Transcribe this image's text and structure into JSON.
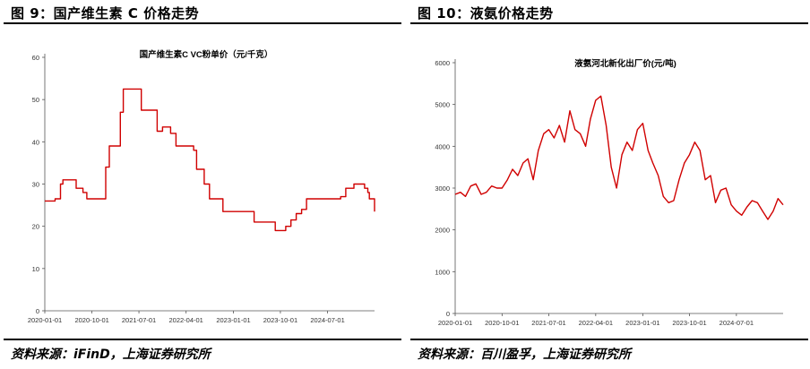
{
  "figures": [
    {
      "fig_title": "图 9：国产维生素 C 价格走势",
      "source": "资料来源：iFinD，上海证券研究所"
    },
    {
      "fig_title": "图 10：液氨价格走势",
      "source": "资料来源：百川盈孚，上海证券研究所"
    }
  ],
  "chart_data": [
    {
      "type": "line",
      "title": "国产维生素C VC粉单价（元/千克）",
      "x_type": "date",
      "xlim": [
        "2020-01-01",
        "2025-03-31"
      ],
      "ylim": [
        0,
        60
      ],
      "y_ticks": [
        "0",
        "10",
        "20",
        "30",
        "40",
        "50",
        "60"
      ],
      "x_ticks": [
        {
          "date": "2020-01-01",
          "label": "2020-01-01"
        },
        {
          "date": "2020-10-01",
          "label": "2020-10-01"
        },
        {
          "date": "2021-07-01",
          "label": "2021-07-01"
        },
        {
          "date": "2022-04-01",
          "label": "2022-04-01"
        },
        {
          "date": "2023-01-01",
          "label": "2023-01-01"
        },
        {
          "date": "2023-10-01",
          "label": "2023-10-01"
        },
        {
          "date": "2024-07-01",
          "label": "2024-07-01"
        }
      ],
      "grid": false,
      "color": "#d00000",
      "step": true,
      "points": [
        [
          "2020-01-01",
          26
        ],
        [
          "2020-03-01",
          26.5
        ],
        [
          "2020-04-01",
          30
        ],
        [
          "2020-04-15",
          31
        ],
        [
          "2020-07-01",
          29
        ],
        [
          "2020-08-10",
          28
        ],
        [
          "2020-09-01",
          26.5
        ],
        [
          "2020-12-20",
          34
        ],
        [
          "2021-01-10",
          39
        ],
        [
          "2021-03-15",
          47
        ],
        [
          "2021-04-01",
          52.5
        ],
        [
          "2021-07-15",
          47.5
        ],
        [
          "2021-10-15",
          42.5
        ],
        [
          "2021-11-15",
          43.5
        ],
        [
          "2022-01-01",
          42
        ],
        [
          "2022-02-01",
          39
        ],
        [
          "2022-05-15",
          38
        ],
        [
          "2022-06-01",
          33.5
        ],
        [
          "2022-07-15",
          30
        ],
        [
          "2022-08-15",
          26.5
        ],
        [
          "2022-11-01",
          23.5
        ],
        [
          "2023-05-01",
          21
        ],
        [
          "2023-08-01",
          21
        ],
        [
          "2023-09-01",
          19
        ],
        [
          "2023-11-01",
          20
        ],
        [
          "2023-12-01",
          21.5
        ],
        [
          "2024-01-01",
          23
        ],
        [
          "2024-02-01",
          24
        ],
        [
          "2024-03-01",
          26.5
        ],
        [
          "2024-09-15",
          27
        ],
        [
          "2024-10-15",
          29
        ],
        [
          "2024-12-01",
          30
        ],
        [
          "2025-02-01",
          29
        ],
        [
          "2025-02-20",
          28
        ],
        [
          "2025-03-01",
          26.5
        ],
        [
          "2025-03-31",
          23.5
        ]
      ]
    },
    {
      "type": "line",
      "title": "液氨河北新化出厂价(元/吨)",
      "x_type": "date",
      "xlim": [
        "2020-01-01",
        "2025-03-31"
      ],
      "ylim": [
        0,
        6000
      ],
      "y_ticks": [
        "0",
        "1000",
        "2000",
        "3000",
        "4000",
        "5000",
        "6000"
      ],
      "x_ticks": [
        {
          "date": "2020-01-01",
          "label": "2020-01-01"
        },
        {
          "date": "2020-10-01",
          "label": "2020-10-01"
        },
        {
          "date": "2021-07-01",
          "label": "2021-07-01"
        },
        {
          "date": "2022-04-01",
          "label": "2022-04-01"
        },
        {
          "date": "2023-01-01",
          "label": "2023-01-01"
        },
        {
          "date": "2023-10-01",
          "label": "2023-10-01"
        },
        {
          "date": "2024-07-01",
          "label": "2024-07-01"
        }
      ],
      "grid": false,
      "color": "#d00000",
      "step": false,
      "points": [
        [
          "2020-01-01",
          2850
        ],
        [
          "2020-02-01",
          2900
        ],
        [
          "2020-03-01",
          2800
        ],
        [
          "2020-04-01",
          3050
        ],
        [
          "2020-05-01",
          3100
        ],
        [
          "2020-06-01",
          2850
        ],
        [
          "2020-07-01",
          2900
        ],
        [
          "2020-08-01",
          3050
        ],
        [
          "2020-09-01",
          3000
        ],
        [
          "2020-10-01",
          3000
        ],
        [
          "2020-11-01",
          3200
        ],
        [
          "2020-12-01",
          3450
        ],
        [
          "2021-01-01",
          3300
        ],
        [
          "2021-02-01",
          3600
        ],
        [
          "2021-03-01",
          3700
        ],
        [
          "2021-04-01",
          3200
        ],
        [
          "2021-05-01",
          3900
        ],
        [
          "2021-06-01",
          4300
        ],
        [
          "2021-07-01",
          4400
        ],
        [
          "2021-08-01",
          4200
        ],
        [
          "2021-09-01",
          4500
        ],
        [
          "2021-10-01",
          4100
        ],
        [
          "2021-11-01",
          4850
        ],
        [
          "2021-12-01",
          4400
        ],
        [
          "2022-01-01",
          4300
        ],
        [
          "2022-02-01",
          4000
        ],
        [
          "2022-03-01",
          4650
        ],
        [
          "2022-04-01",
          5100
        ],
        [
          "2022-05-01",
          5200
        ],
        [
          "2022-06-01",
          4500
        ],
        [
          "2022-07-01",
          3500
        ],
        [
          "2022-08-01",
          3000
        ],
        [
          "2022-09-01",
          3800
        ],
        [
          "2022-10-01",
          4100
        ],
        [
          "2022-11-01",
          3900
        ],
        [
          "2022-12-01",
          4400
        ],
        [
          "2023-01-01",
          4550
        ],
        [
          "2023-02-01",
          3900
        ],
        [
          "2023-03-01",
          3600
        ],
        [
          "2023-04-01",
          3300
        ],
        [
          "2023-05-01",
          2800
        ],
        [
          "2023-06-01",
          2650
        ],
        [
          "2023-07-01",
          2700
        ],
        [
          "2023-08-01",
          3200
        ],
        [
          "2023-09-01",
          3600
        ],
        [
          "2023-10-01",
          3800
        ],
        [
          "2023-11-01",
          4100
        ],
        [
          "2023-12-01",
          3900
        ],
        [
          "2024-01-01",
          3200
        ],
        [
          "2024-02-01",
          3300
        ],
        [
          "2024-03-01",
          2650
        ],
        [
          "2024-04-01",
          2950
        ],
        [
          "2024-05-01",
          3000
        ],
        [
          "2024-06-01",
          2600
        ],
        [
          "2024-07-01",
          2450
        ],
        [
          "2024-08-01",
          2350
        ],
        [
          "2024-09-01",
          2550
        ],
        [
          "2024-10-01",
          2700
        ],
        [
          "2024-11-01",
          2650
        ],
        [
          "2024-12-01",
          2450
        ],
        [
          "2025-01-01",
          2250
        ],
        [
          "2025-02-01",
          2450
        ],
        [
          "2025-03-01",
          2750
        ],
        [
          "2025-03-31",
          2600
        ]
      ]
    }
  ]
}
